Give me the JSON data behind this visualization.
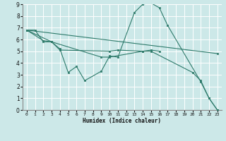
{
  "xlabel": "Humidex (Indice chaleur)",
  "bg_color": "#cce8e8",
  "grid_color": "#ffffff",
  "line_color": "#2d7a6a",
  "xlim": [
    -0.5,
    23.5
  ],
  "ylim": [
    0,
    9
  ],
  "line1_x": [
    0,
    1,
    2,
    3,
    4,
    5,
    6,
    7,
    9,
    10,
    11,
    13,
    14,
    15,
    16,
    17,
    21,
    22,
    23
  ],
  "line1_y": [
    6.8,
    6.8,
    5.8,
    5.8,
    5.2,
    3.2,
    3.7,
    2.5,
    3.3,
    4.6,
    4.5,
    8.3,
    9.0,
    9.1,
    8.7,
    7.2,
    2.4,
    1.0,
    0.0
  ],
  "line2_x": [
    0,
    2,
    3,
    4,
    10,
    11,
    14,
    15,
    16
  ],
  "line2_y": [
    6.8,
    5.9,
    5.8,
    5.1,
    5.0,
    5.1,
    5.0,
    5.1,
    5.0
  ],
  "line3_x": [
    0,
    23
  ],
  "line3_y": [
    6.8,
    4.8
  ],
  "line4_x": [
    0,
    3,
    9,
    10,
    14,
    15,
    20,
    21,
    22,
    23
  ],
  "line4_y": [
    6.8,
    5.8,
    4.5,
    4.5,
    5.0,
    5.0,
    3.2,
    2.5,
    1.0,
    0.0
  ]
}
